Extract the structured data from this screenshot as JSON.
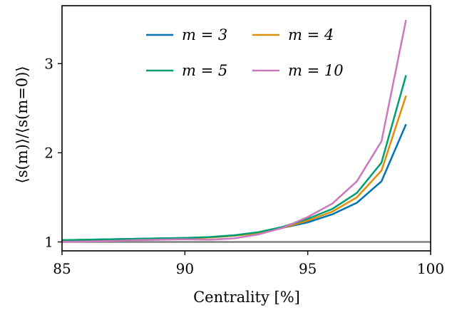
{
  "chart_data": {
    "type": "line",
    "xlabel": "Centrality [%]",
    "ylabel": "⟨s(m)⟩/⟨s(m=0)⟩",
    "xlim": [
      85,
      100
    ],
    "ylim": [
      0.9,
      3.65
    ],
    "x_ticks": [
      85,
      90,
      95,
      100
    ],
    "y_ticks": [
      1,
      2,
      3
    ],
    "grid": false,
    "legend_position": "top-center",
    "reference_line": {
      "y": 1,
      "color": "#808080"
    },
    "x": [
      85,
      86,
      87,
      88,
      89,
      90,
      91,
      92,
      93,
      94,
      95,
      96,
      97,
      98,
      99
    ],
    "series": [
      {
        "name": "m = 3",
        "color": "#0173b2",
        "values": [
          1.02,
          1.025,
          1.03,
          1.035,
          1.04,
          1.045,
          1.05,
          1.07,
          1.1,
          1.16,
          1.22,
          1.31,
          1.44,
          1.68,
          2.32
        ]
      },
      {
        "name": "m = 4",
        "color": "#de8f05",
        "values": [
          1.01,
          1.015,
          1.02,
          1.03,
          1.035,
          1.04,
          1.05,
          1.07,
          1.1,
          1.16,
          1.24,
          1.34,
          1.5,
          1.8,
          2.64
        ]
      },
      {
        "name": "m = 5",
        "color": "#029e73",
        "values": [
          1.02,
          1.025,
          1.03,
          1.035,
          1.04,
          1.045,
          1.055,
          1.075,
          1.11,
          1.17,
          1.26,
          1.37,
          1.55,
          1.89,
          2.87
        ]
      },
      {
        "name": "m = 10",
        "color": "#cc78bc",
        "values": [
          1.0,
          1.005,
          1.01,
          1.02,
          1.025,
          1.03,
          1.025,
          1.04,
          1.085,
          1.16,
          1.28,
          1.43,
          1.68,
          2.13,
          3.49
        ]
      }
    ]
  }
}
